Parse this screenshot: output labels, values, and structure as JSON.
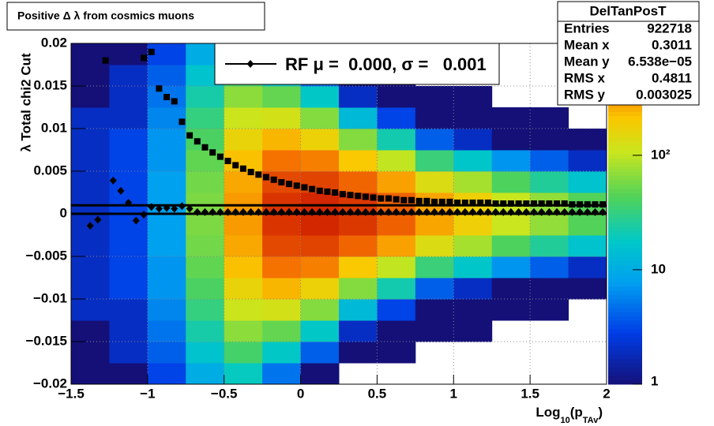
{
  "chart_data": {
    "type": "heatmap",
    "title": "Positive Δ λ from cosmics muons",
    "y_label": "λ  Total chi2 Cut",
    "x_label": [
      "Log",
      "10",
      "(p",
      "TAv",
      ")"
    ],
    "xlim": [
      -1.5,
      2
    ],
    "ylim": [
      -0.02,
      0.02
    ],
    "xticks": [
      {
        "value": -1.5,
        "label": "−1.5"
      },
      {
        "value": -1,
        "label": "−1"
      },
      {
        "value": -0.5,
        "label": "−0.5"
      },
      0,
      0.5,
      1,
      1.5,
      2
    ],
    "yticks": [
      {
        "value": -0.02,
        "label": "−0.02"
      },
      {
        "value": -0.015,
        "label": "−0.015"
      },
      {
        "value": -0.01,
        "label": "−0.01"
      },
      {
        "value": -0.005,
        "label": "−0.005"
      },
      0,
      0.005,
      0.01,
      0.015,
      0.02
    ],
    "grid": true,
    "zlim": [
      1,
      950
    ],
    "zlog": true,
    "zticks": [
      1,
      10,
      {
        "value": 100,
        "label": "10²"
      }
    ],
    "x_bins": [
      -1.5,
      -1.25,
      -1,
      -0.75,
      -0.5,
      -0.25,
      0,
      0.25,
      0.5,
      0.75,
      1,
      1.25,
      1.5,
      1.75,
      2
    ],
    "y_bins": [
      -0.02,
      -0.0175,
      -0.015,
      -0.0125,
      -0.01,
      -0.0075,
      -0.005,
      -0.0025,
      0,
      0.0025,
      0.005,
      0.0075,
      0.01,
      0.0125,
      0.015,
      0.0175,
      0.02
    ],
    "z": [
      [
        1,
        1,
        3,
        10,
        19,
        5,
        1,
        0,
        0,
        0,
        0,
        0,
        0,
        0
      ],
      [
        1,
        2,
        4,
        16,
        38,
        18,
        4,
        1,
        1,
        0,
        0,
        0,
        0,
        0
      ],
      [
        1,
        2,
        5,
        23,
        68,
        50,
        18,
        2,
        1,
        1,
        1,
        0,
        0,
        0
      ],
      [
        2,
        2,
        6,
        32,
        112,
        121,
        64,
        13,
        3,
        1,
        1,
        1,
        1,
        0
      ],
      [
        2,
        3,
        7,
        41,
        165,
        242,
        173,
        64,
        22,
        4,
        2,
        1,
        1,
        1
      ],
      [
        2,
        3,
        7,
        49,
        221,
        407,
        366,
        206,
        101,
        34,
        17,
        7,
        4,
        2
      ],
      [
        2,
        3,
        8,
        56,
        269,
        576,
        604,
        451,
        282,
        137,
        82,
        42,
        26,
        16
      ],
      [
        2,
        3,
        8,
        60,
        296,
        685,
        775,
        666,
        469,
        275,
        181,
        107,
        71,
        44
      ],
      [
        2,
        3,
        8,
        60,
        296,
        685,
        775,
        666,
        469,
        275,
        181,
        107,
        71,
        44
      ],
      [
        2,
        3,
        8,
        56,
        269,
        576,
        604,
        451,
        282,
        137,
        82,
        42,
        26,
        16
      ],
      [
        2,
        3,
        7,
        49,
        221,
        407,
        366,
        206,
        101,
        34,
        17,
        7,
        4,
        2
      ],
      [
        2,
        3,
        7,
        41,
        165,
        242,
        173,
        64,
        22,
        4,
        2,
        1,
        1,
        1
      ],
      [
        2,
        2,
        6,
        32,
        112,
        121,
        64,
        13,
        3,
        1,
        1,
        1,
        1,
        0
      ],
      [
        1,
        2,
        5,
        23,
        68,
        50,
        18,
        2,
        1,
        1,
        1,
        0,
        0,
        0
      ],
      [
        1,
        2,
        4,
        16,
        38,
        18,
        4,
        1,
        1,
        0,
        0,
        0,
        0,
        0
      ],
      [
        1,
        1,
        3,
        10,
        19,
        5,
        1,
        0,
        0,
        0,
        0,
        0,
        0,
        0
      ]
    ],
    "fit_lines": [
      0.001,
      0
    ],
    "series": [
      {
        "name": "RF μ =  0.000, σ =   0.001",
        "color": "#000000",
        "marker": "diamond",
        "x": [
          -1.375,
          -1.325,
          -1.225,
          -1.175,
          -1.125,
          -1.075,
          -1.025,
          -0.975,
          -0.925,
          -0.875,
          -0.825,
          -0.775,
          -0.725,
          -0.675,
          -0.625,
          -0.575,
          -0.525,
          -0.475,
          -0.425,
          -0.375,
          -0.325,
          -0.275,
          -0.225,
          -0.175,
          -0.125,
          -0.075,
          -0.025,
          0.025,
          0.075,
          0.125,
          0.175,
          0.225,
          0.275,
          0.325,
          0.375,
          0.425,
          0.475,
          0.525,
          0.575,
          0.625,
          0.675,
          0.725,
          0.775,
          0.825,
          0.875,
          0.925,
          0.975,
          1.025,
          1.075,
          1.125,
          1.175,
          1.225,
          1.275,
          1.325,
          1.375,
          1.425,
          1.475,
          1.525,
          1.575,
          1.625,
          1.675,
          1.725,
          1.775,
          1.825,
          1.875,
          1.925,
          1.975
        ],
        "values": [
          -0.0014,
          -0.0007,
          0.0039,
          0.0027,
          0.0013,
          -0.0008,
          -0.0001,
          0.0008,
          0.0006,
          0.0007,
          0.0006,
          0.0009,
          0.0006,
          0.0002,
          0.0002,
          0.0002,
          0.0002,
          0.0002,
          0.0002,
          0.0002,
          0.0002,
          0.0002,
          0.0002,
          0.0002,
          0.0002,
          0.0002,
          0.0002,
          0.0002,
          0.0002,
          0.0002,
          0.0002,
          0.0002,
          0.0002,
          0.0002,
          0.0002,
          0.0002,
          0.0002,
          0.0002,
          0.0002,
          0.0002,
          0.0002,
          0.0002,
          0.0002,
          0.0002,
          0.0002,
          0.0002,
          0.0002,
          0.0002,
          0.0002,
          0.0002,
          0.0002,
          0.0002,
          0.0002,
          0.0002,
          0.0002,
          0.0002,
          0.0002,
          0.0002,
          0.0002,
          0.0002,
          0.0002,
          0.0002,
          0.0002,
          0.0002,
          0.0002,
          0.0002,
          0.0002
        ]
      },
      {
        "color": "#000000",
        "marker": "square",
        "x": [
          -1.275,
          -1.025,
          -0.975,
          -0.925,
          -0.875,
          -0.825,
          -0.775,
          -0.725,
          -0.675,
          -0.625,
          -0.575,
          -0.525,
          -0.475,
          -0.425,
          -0.375,
          -0.325,
          -0.275,
          -0.225,
          -0.175,
          -0.125,
          -0.075,
          -0.025,
          0.025,
          0.075,
          0.125,
          0.175,
          0.225,
          0.275,
          0.325,
          0.375,
          0.425,
          0.475,
          0.525,
          0.575,
          0.625,
          0.675,
          0.725,
          0.775,
          0.825,
          0.875,
          0.925,
          0.975,
          1.025,
          1.075,
          1.125,
          1.175,
          1.225,
          1.275,
          1.325,
          1.375,
          1.425,
          1.475,
          1.525,
          1.575,
          1.625,
          1.675,
          1.725,
          1.775,
          1.825,
          1.875,
          1.925,
          1.975
        ],
        "values": [
          0.018,
          0.0183,
          0.019,
          0.0147,
          0.0137,
          0.0132,
          0.0108,
          0.0092,
          0.0085,
          0.0078,
          0.0072,
          0.0067,
          0.0062,
          0.0057,
          0.0053,
          0.0049,
          0.0046,
          0.0043,
          0.004,
          0.0037,
          0.0035,
          0.0033,
          0.0031,
          0.0029,
          0.0027,
          0.0026,
          0.0025,
          0.0023,
          0.0022,
          0.0021,
          0.002,
          0.0019,
          0.0018,
          0.0018,
          0.0017,
          0.0016,
          0.0016,
          0.0015,
          0.0015,
          0.0014,
          0.0014,
          0.0014,
          0.0013,
          0.0013,
          0.0013,
          0.0013,
          0.0013,
          0.0012,
          0.0012,
          0.0012,
          0.0012,
          0.0012,
          0.0012,
          0.0012,
          0.0012,
          0.0012,
          0.0012,
          0.0011,
          0.0011,
          0.0011,
          0.0011,
          0.0011
        ]
      }
    ],
    "stats": {
      "title": "DelTanPosT",
      "rows": [
        [
          "Entries",
          "922718"
        ],
        [
          "Mean x",
          "0.3011"
        ],
        [
          "Mean y",
          "6.538e−05"
        ],
        [
          "RMS x",
          "0.4811"
        ],
        [
          "RMS y",
          "0.003025"
        ]
      ]
    }
  }
}
